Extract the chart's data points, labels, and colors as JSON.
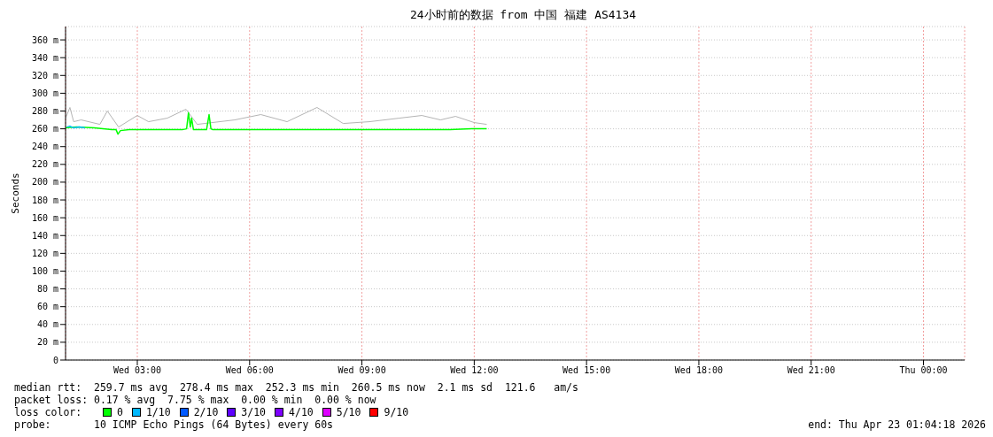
{
  "chart_data": {
    "type": "line",
    "title": "24小时前的数据 from 中国 福建 AS4134",
    "ylabel": "Seconds",
    "legend_title": "loss color:",
    "xlim": [
      "2026-04-22T01:05",
      "2026-04-23T01:06"
    ],
    "xticks": [
      {
        "value": "2026-04-22T03:00",
        "label": "Wed 03:00"
      },
      {
        "value": "2026-04-22T06:00",
        "label": "Wed 06:00"
      },
      {
        "value": "2026-04-22T09:00",
        "label": "Wed 09:00"
      },
      {
        "value": "2026-04-22T12:00",
        "label": "Wed 12:00"
      },
      {
        "value": "2026-04-22T15:00",
        "label": "Wed 15:00"
      },
      {
        "value": "2026-04-22T18:00",
        "label": "Wed 18:00"
      },
      {
        "value": "2026-04-22T21:00",
        "label": "Wed 21:00"
      },
      {
        "value": "2026-04-23T00:00",
        "label": "Thu 00:00"
      }
    ],
    "ylim": [
      0,
      375
    ],
    "yticks": [
      0,
      {
        "value": 20,
        "label": "20 m"
      },
      {
        "value": 40,
        "label": "40 m"
      },
      {
        "value": 60,
        "label": "60 m"
      },
      {
        "value": 80,
        "label": "80 m"
      },
      {
        "value": 100,
        "label": "100 m"
      },
      {
        "value": 120,
        "label": "120 m"
      },
      {
        "value": 140,
        "label": "140 m"
      },
      {
        "value": 160,
        "label": "160 m"
      },
      {
        "value": 180,
        "label": "180 m"
      },
      {
        "value": 200,
        "label": "200 m"
      },
      {
        "value": 220,
        "label": "220 m"
      },
      {
        "value": 240,
        "label": "240 m"
      },
      {
        "value": 260,
        "label": "260 m"
      },
      {
        "value": 280,
        "label": "280 m"
      },
      {
        "value": 300,
        "label": "300 m"
      },
      {
        "value": 320,
        "label": "320 m"
      },
      {
        "value": 340,
        "label": "340 m"
      },
      {
        "value": 360,
        "label": "360 m"
      }
    ],
    "grid": true,
    "legend": "bottom",
    "series": [
      {
        "color": "#b4b4b4",
        "x": [
          "2026-04-22T01:05",
          "2026-04-22T01:12",
          "2026-04-22T01:18",
          "2026-04-22T01:30",
          "2026-04-22T02:00",
          "2026-04-22T02:12",
          "2026-04-22T02:30",
          "2026-04-22T03:00",
          "2026-04-22T03:18",
          "2026-04-22T03:48",
          "2026-04-22T04:18",
          "2026-04-22T04:36",
          "2026-04-22T05:36",
          "2026-04-22T06:18",
          "2026-04-22T07:00",
          "2026-04-22T07:48",
          "2026-04-22T08:30",
          "2026-04-22T09:12",
          "2026-04-22T10:00",
          "2026-04-22T10:36",
          "2026-04-22T11:06",
          "2026-04-22T11:30",
          "2026-04-22T12:00",
          "2026-04-22T12:20"
        ],
        "values": [
          272,
          284,
          268,
          270,
          265,
          280,
          262,
          275,
          268,
          272,
          282,
          265,
          270,
          276,
          268,
          284,
          266,
          268,
          272,
          275,
          270,
          274,
          267,
          265
        ]
      },
      {
        "name": "0",
        "color": "#00ff00",
        "x": [
          "2026-04-22T01:05",
          "2026-04-22T01:23",
          "2026-04-22T01:51",
          "2026-04-22T02:05",
          "2026-04-22T02:19",
          "2026-04-22T02:26",
          "2026-04-22T02:29",
          "2026-04-22T02:33",
          "2026-04-22T02:47",
          "2026-04-22T03:16",
          "2026-04-22T04:12",
          "2026-04-22T04:19",
          "2026-04-22T04:22",
          "2026-04-22T04:25",
          "2026-04-22T04:27",
          "2026-04-22T04:30",
          "2026-04-22T04:51",
          "2026-04-22T04:55",
          "2026-04-22T04:58",
          "2026-04-22T05:01",
          "2026-04-22T05:36",
          "2026-04-22T06:32",
          "2026-04-22T07:43",
          "2026-04-22T08:53",
          "2026-04-22T10:03",
          "2026-04-22T11:14",
          "2026-04-22T11:56",
          "2026-04-22T12:20"
        ],
        "values": [
          261,
          262,
          261,
          260,
          259,
          259,
          254,
          258,
          259,
          259,
          259,
          260,
          278,
          262,
          272,
          259,
          259,
          276,
          260,
          259,
          259,
          259,
          259,
          259,
          259,
          259,
          260,
          260
        ]
      },
      {
        "name": "1/10",
        "color": "#00b8ff",
        "x": [
          "2026-04-22T01:07",
          "2026-04-22T01:12",
          "2026-04-22T01:18",
          "2026-04-22T01:27",
          "2026-04-22T01:36"
        ],
        "values": [
          262,
          263,
          261,
          262,
          261
        ]
      },
      {
        "name": "2/10",
        "color": "#0059ff"
      },
      {
        "name": "3/10",
        "color": "#5e00ff"
      },
      {
        "name": "4/10",
        "color": "#7e00ff"
      },
      {
        "name": "5/10",
        "color": "#dd00ff"
      },
      {
        "name": "9/10",
        "color": "#ff0000"
      }
    ],
    "annotations": [
      "median rtt:  259.7 ms avg  278.4 ms max  252.3 ms min  260.5 ms now  2.1 ms sd  121.6   am/s",
      "packet loss: 0.17 % avg  7.75 % max  0.00 % min  0.00 % now",
      "probe:       10 ICMP Echo Pings (64 Bytes) every 60s",
      "end: Thu Apr 23 01:04:18 2026"
    ]
  }
}
